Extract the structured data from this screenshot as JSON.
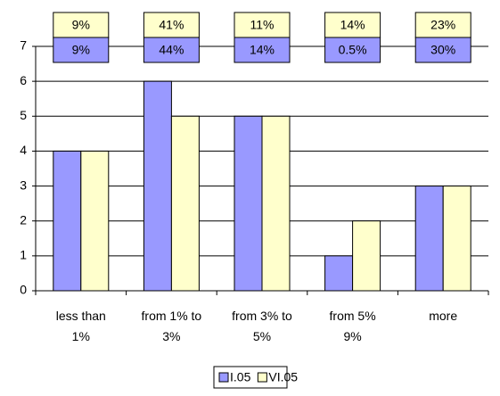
{
  "chart_data": {
    "type": "bar",
    "categories": [
      "less than 1%",
      "from 1% to 3%",
      "from 3% to 5%",
      "from 5% 9%",
      "more"
    ],
    "series": [
      {
        "name": "I.05",
        "color": "#9999ff",
        "values": [
          4,
          6,
          5,
          1,
          3
        ]
      },
      {
        "name": "VI.05",
        "color": "#ffffcc",
        "values": [
          4,
          5,
          5,
          2,
          3
        ]
      }
    ],
    "table": {
      "rows": [
        [
          "9%",
          "41%",
          "11%",
          "14%",
          "23%"
        ],
        [
          "9%",
          "44%",
          "14%",
          "0.5%",
          "30%"
        ]
      ],
      "colors": [
        "#ffffcc",
        "#9999ff"
      ]
    },
    "ylim": [
      0,
      7
    ],
    "yticks": [
      0,
      1,
      2,
      3,
      4,
      5,
      6,
      7
    ],
    "grid": true,
    "legend": "bottom"
  }
}
